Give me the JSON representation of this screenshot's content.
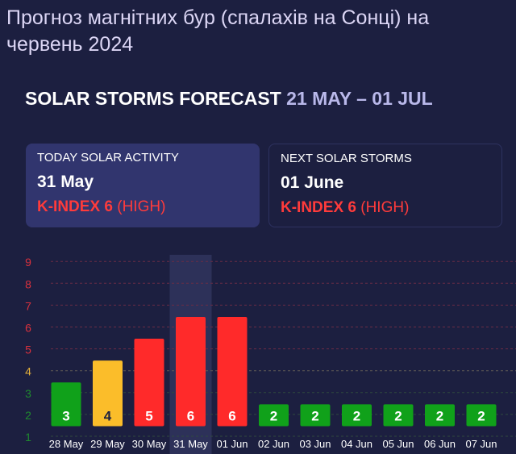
{
  "page_title": "Прогноз магнітних бур (спалахів на Сонці) на червень 2024",
  "subtitle": {
    "main": "SOLAR STORMS FORECAST",
    "range": "21 MAY – 01 JUL"
  },
  "cards": {
    "today": {
      "label": "TODAY SOLAR ACTIVITY",
      "date": "31 May",
      "k_index": "K-INDEX 6",
      "level": "(HIGH)"
    },
    "next": {
      "label": "NEXT SOLAR STORMS",
      "date": "01 June",
      "k_index": "K-INDEX 6",
      "level": "(HIGH)"
    }
  },
  "colors": {
    "low": "#10a11a",
    "moderate": "#fbbd2a",
    "high": "#ff2a2a",
    "background": "#1c1f40"
  },
  "chart_data": {
    "type": "bar",
    "categories": [
      "28 May",
      "29 May",
      "30 May",
      "31 May",
      "01 Jun",
      "02 Jun",
      "03 Jun",
      "04 Jun",
      "05 Jun",
      "06 Jun",
      "07 Jun"
    ],
    "values": [
      3,
      4,
      5,
      6,
      6,
      2,
      2,
      2,
      2,
      2,
      2
    ],
    "highlighted": "31 May",
    "yticks": [
      1,
      2,
      3,
      4,
      5,
      6,
      7,
      8,
      9
    ],
    "ylabel": "",
    "xlabel": "",
    "grid": true
  }
}
